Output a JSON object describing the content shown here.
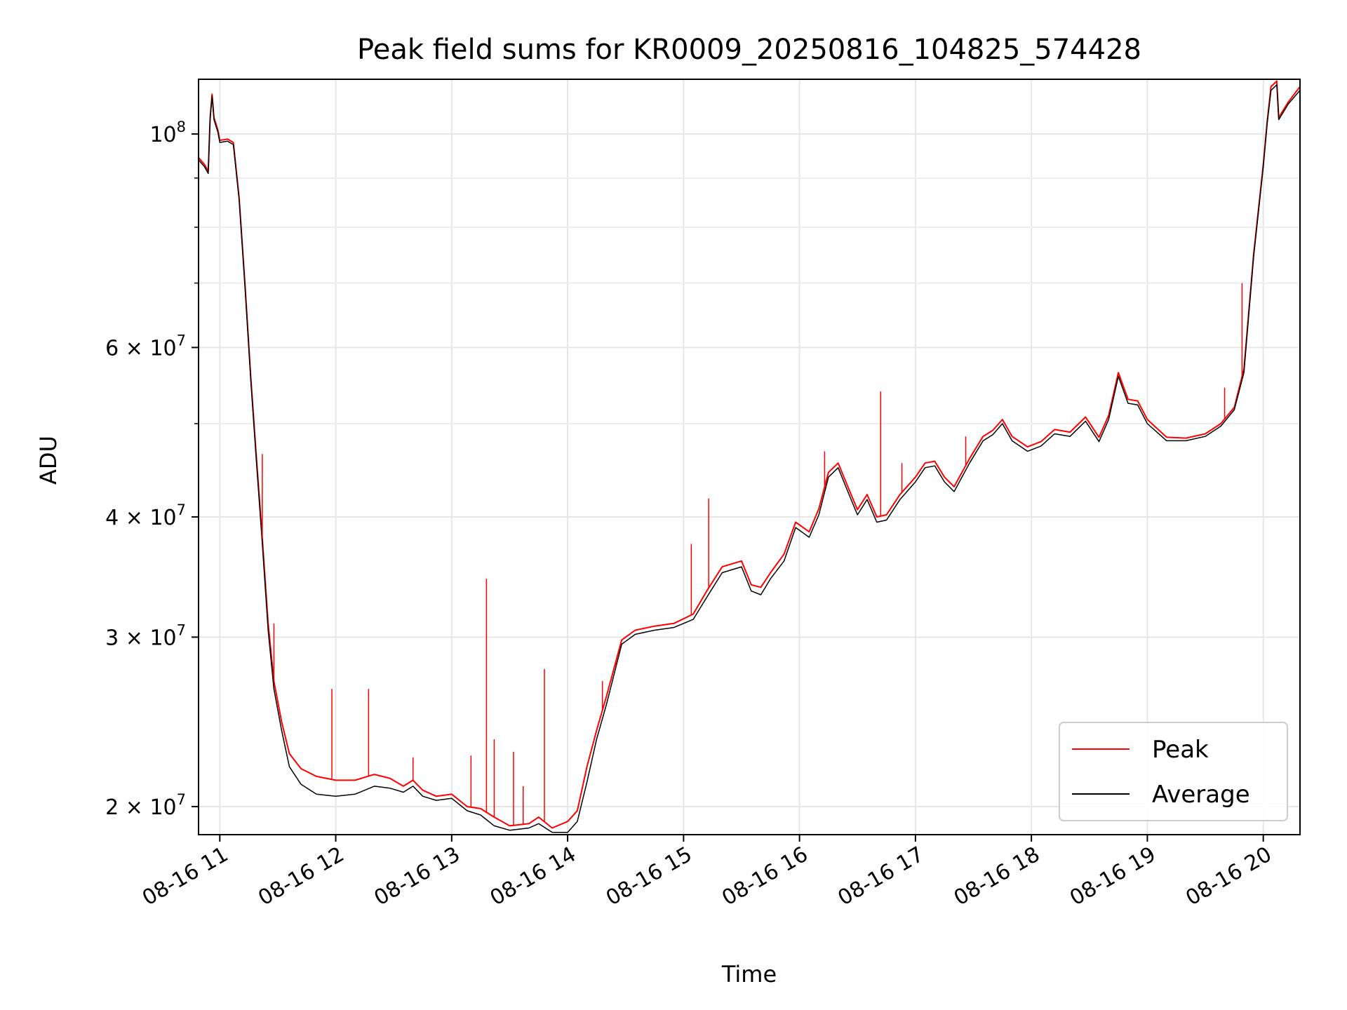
{
  "chart_data": {
    "type": "line",
    "title": "Peak field sums for KR0009_20250816_104825_574428",
    "xlabel": "Time",
    "ylabel": "ADU",
    "xlim": [
      "2025-08-16 10:49",
      "2025-08-16 20:19"
    ],
    "ylim": [
      18700000,
      114000000
    ],
    "yscale": "log",
    "grid": true,
    "legend_position": "bottom-right",
    "x_ticks": [
      {
        "x": "2025-08-16 11:00",
        "label": "08-16 11"
      },
      {
        "x": "2025-08-16 12:00",
        "label": "08-16 12"
      },
      {
        "x": "2025-08-16 13:00",
        "label": "08-16 13"
      },
      {
        "x": "2025-08-16 14:00",
        "label": "08-16 14"
      },
      {
        "x": "2025-08-16 15:00",
        "label": "08-16 15"
      },
      {
        "x": "2025-08-16 16:00",
        "label": "08-16 16"
      },
      {
        "x": "2025-08-16 17:00",
        "label": "08-16 17"
      },
      {
        "x": "2025-08-16 18:00",
        "label": "08-16 18"
      },
      {
        "x": "2025-08-16 19:00",
        "label": "08-16 19"
      },
      {
        "x": "2025-08-16 20:00",
        "label": "08-16 20"
      }
    ],
    "y_ticks": [
      {
        "value": 20000000,
        "mantissa": "2",
        "exponent": "7"
      },
      {
        "value": 30000000,
        "mantissa": "3",
        "exponent": "7"
      },
      {
        "value": 40000000,
        "mantissa": "4",
        "exponent": "7"
      },
      {
        "value": 60000000,
        "mantissa": "6",
        "exponent": "7"
      },
      {
        "value": 100000000,
        "mantissa": "",
        "exponent": "8"
      }
    ],
    "y_minor_ticks": [
      50000000,
      70000000,
      80000000,
      90000000
    ],
    "series": [
      {
        "name": "Peak",
        "color": "#ff0000",
        "points": [
          [
            "2025-08-16 10:49",
            94500000
          ],
          [
            "2025-08-16 10:52",
            93000000
          ],
          [
            "2025-08-16 10:54",
            91500000
          ],
          [
            "2025-08-16 10:55",
            104000000
          ],
          [
            "2025-08-16 10:56",
            110000000
          ],
          [
            "2025-08-16 10:57",
            104000000
          ],
          [
            "2025-08-16 10:59",
            101000000
          ],
          [
            "2025-08-16 11:00",
            98500000
          ],
          [
            "2025-08-16 11:04",
            98800000
          ],
          [
            "2025-08-16 11:07",
            98000000
          ],
          [
            "2025-08-16 11:10",
            86000000
          ],
          [
            "2025-08-16 11:13",
            70000000
          ],
          [
            "2025-08-16 11:16",
            56000000
          ],
          [
            "2025-08-16 11:19",
            46000000
          ],
          [
            "2025-08-16 11:22",
            38000000
          ],
          [
            "2025-08-16 11:25",
            31000000
          ],
          [
            "2025-08-16 11:28",
            27000000
          ],
          [
            "2025-08-16 11:32",
            24500000
          ],
          [
            "2025-08-16 11:36",
            22700000
          ],
          [
            "2025-08-16 11:42",
            21900000
          ],
          [
            "2025-08-16 11:50",
            21500000
          ],
          [
            "2025-08-16 12:00",
            21300000
          ],
          [
            "2025-08-16 12:10",
            21300000
          ],
          [
            "2025-08-16 12:20",
            21600000
          ],
          [
            "2025-08-16 12:28",
            21400000
          ],
          [
            "2025-08-16 12:35",
            21000000
          ],
          [
            "2025-08-16 12:40",
            21300000
          ],
          [
            "2025-08-16 12:45",
            20800000
          ],
          [
            "2025-08-16 12:52",
            20500000
          ],
          [
            "2025-08-16 13:00",
            20600000
          ],
          [
            "2025-08-16 13:08",
            20000000
          ],
          [
            "2025-08-16 13:15",
            19900000
          ],
          [
            "2025-08-16 13:22",
            19500000
          ],
          [
            "2025-08-16 13:30",
            19100000
          ],
          [
            "2025-08-16 13:40",
            19200000
          ],
          [
            "2025-08-16 13:45",
            19500000
          ],
          [
            "2025-08-16 13:52",
            19000000
          ],
          [
            "2025-08-16 14:00",
            19300000
          ],
          [
            "2025-08-16 14:05",
            19800000
          ],
          [
            "2025-08-16 14:10",
            22000000
          ],
          [
            "2025-08-16 14:15",
            24000000
          ],
          [
            "2025-08-16 14:20",
            26000000
          ],
          [
            "2025-08-16 14:28",
            29800000
          ],
          [
            "2025-08-16 14:35",
            30500000
          ],
          [
            "2025-08-16 14:45",
            30800000
          ],
          [
            "2025-08-16 14:55",
            31000000
          ],
          [
            "2025-08-16 15:05",
            31700000
          ],
          [
            "2025-08-16 15:12",
            33500000
          ],
          [
            "2025-08-16 15:20",
            35500000
          ],
          [
            "2025-08-16 15:30",
            36000000
          ],
          [
            "2025-08-16 15:35",
            34000000
          ],
          [
            "2025-08-16 15:40",
            33800000
          ],
          [
            "2025-08-16 15:45",
            35000000
          ],
          [
            "2025-08-16 15:52",
            36600000
          ],
          [
            "2025-08-16 15:58",
            39500000
          ],
          [
            "2025-08-16 16:05",
            38600000
          ],
          [
            "2025-08-16 16:10",
            40800000
          ],
          [
            "2025-08-16 16:15",
            44500000
          ],
          [
            "2025-08-16 16:20",
            45500000
          ],
          [
            "2025-08-16 16:25",
            43000000
          ],
          [
            "2025-08-16 16:30",
            40700000
          ],
          [
            "2025-08-16 16:35",
            42200000
          ],
          [
            "2025-08-16 16:40",
            40000000
          ],
          [
            "2025-08-16 16:45",
            40200000
          ],
          [
            "2025-08-16 16:52",
            42200000
          ],
          [
            "2025-08-16 17:00",
            44000000
          ],
          [
            "2025-08-16 17:05",
            45500000
          ],
          [
            "2025-08-16 17:10",
            45700000
          ],
          [
            "2025-08-16 17:15",
            44000000
          ],
          [
            "2025-08-16 17:20",
            43000000
          ],
          [
            "2025-08-16 17:28",
            46000000
          ],
          [
            "2025-08-16 17:35",
            48500000
          ],
          [
            "2025-08-16 17:40",
            49200000
          ],
          [
            "2025-08-16 17:45",
            50500000
          ],
          [
            "2025-08-16 17:50",
            48500000
          ],
          [
            "2025-08-16 17:58",
            47300000
          ],
          [
            "2025-08-16 18:05",
            47900000
          ],
          [
            "2025-08-16 18:12",
            49300000
          ],
          [
            "2025-08-16 18:20",
            49000000
          ],
          [
            "2025-08-16 18:28",
            50800000
          ],
          [
            "2025-08-16 18:35",
            48400000
          ],
          [
            "2025-08-16 18:40",
            51000000
          ],
          [
            "2025-08-16 18:45",
            56500000
          ],
          [
            "2025-08-16 18:50",
            53000000
          ],
          [
            "2025-08-16 18:55",
            52800000
          ],
          [
            "2025-08-16 19:00",
            50500000
          ],
          [
            "2025-08-16 19:10",
            48400000
          ],
          [
            "2025-08-16 19:20",
            48300000
          ],
          [
            "2025-08-16 19:30",
            48800000
          ],
          [
            "2025-08-16 19:38",
            50000000
          ],
          [
            "2025-08-16 19:45",
            52000000
          ],
          [
            "2025-08-16 19:50",
            57000000
          ],
          [
            "2025-08-16 19:55",
            75000000
          ],
          [
            "2025-08-16 20:00",
            93000000
          ],
          [
            "2025-08-16 20:02",
            103000000
          ],
          [
            "2025-08-16 20:04",
            112000000
          ],
          [
            "2025-08-16 20:07",
            113500000
          ],
          [
            "2025-08-16 20:08",
            104000000
          ],
          [
            "2025-08-16 20:13",
            108000000
          ],
          [
            "2025-08-16 20:19",
            112000000
          ]
        ]
      },
      {
        "name": "Average",
        "color": "#000000",
        "points": [
          [
            "2025-08-16 10:49",
            94000000
          ],
          [
            "2025-08-16 10:52",
            92500000
          ],
          [
            "2025-08-16 10:54",
            91000000
          ],
          [
            "2025-08-16 10:55",
            103500000
          ],
          [
            "2025-08-16 10:56",
            109500000
          ],
          [
            "2025-08-16 10:57",
            103500000
          ],
          [
            "2025-08-16 10:59",
            100500000
          ],
          [
            "2025-08-16 11:00",
            98000000
          ],
          [
            "2025-08-16 11:04",
            98300000
          ],
          [
            "2025-08-16 11:07",
            97500000
          ],
          [
            "2025-08-16 11:10",
            85500000
          ],
          [
            "2025-08-16 11:13",
            69500000
          ],
          [
            "2025-08-16 11:16",
            55500000
          ],
          [
            "2025-08-16 11:19",
            45500000
          ],
          [
            "2025-08-16 11:22",
            37500000
          ],
          [
            "2025-08-16 11:25",
            30500000
          ],
          [
            "2025-08-16 11:28",
            26500000
          ],
          [
            "2025-08-16 11:32",
            24000000
          ],
          [
            "2025-08-16 11:36",
            22000000
          ],
          [
            "2025-08-16 11:42",
            21100000
          ],
          [
            "2025-08-16 11:50",
            20600000
          ],
          [
            "2025-08-16 12:00",
            20500000
          ],
          [
            "2025-08-16 12:10",
            20600000
          ],
          [
            "2025-08-16 12:20",
            21000000
          ],
          [
            "2025-08-16 12:28",
            20900000
          ],
          [
            "2025-08-16 12:35",
            20700000
          ],
          [
            "2025-08-16 12:40",
            21000000
          ],
          [
            "2025-08-16 12:45",
            20500000
          ],
          [
            "2025-08-16 12:52",
            20300000
          ],
          [
            "2025-08-16 13:00",
            20400000
          ],
          [
            "2025-08-16 13:08",
            19800000
          ],
          [
            "2025-08-16 13:15",
            19600000
          ],
          [
            "2025-08-16 13:22",
            19100000
          ],
          [
            "2025-08-16 13:30",
            18900000
          ],
          [
            "2025-08-16 13:40",
            19000000
          ],
          [
            "2025-08-16 13:45",
            19200000
          ],
          [
            "2025-08-16 13:52",
            18800000
          ],
          [
            "2025-08-16 14:00",
            18800000
          ],
          [
            "2025-08-16 14:05",
            19300000
          ],
          [
            "2025-08-16 14:10",
            21200000
          ],
          [
            "2025-08-16 14:15",
            23500000
          ],
          [
            "2025-08-16 14:20",
            25500000
          ],
          [
            "2025-08-16 14:28",
            29500000
          ],
          [
            "2025-08-16 14:35",
            30200000
          ],
          [
            "2025-08-16 14:45",
            30500000
          ],
          [
            "2025-08-16 14:55",
            30700000
          ],
          [
            "2025-08-16 15:05",
            31300000
          ],
          [
            "2025-08-16 15:12",
            33000000
          ],
          [
            "2025-08-16 15:20",
            35000000
          ],
          [
            "2025-08-16 15:30",
            35500000
          ],
          [
            "2025-08-16 15:35",
            33500000
          ],
          [
            "2025-08-16 15:40",
            33200000
          ],
          [
            "2025-08-16 15:45",
            34500000
          ],
          [
            "2025-08-16 15:52",
            36000000
          ],
          [
            "2025-08-16 15:58",
            39000000
          ],
          [
            "2025-08-16 16:05",
            38100000
          ],
          [
            "2025-08-16 16:10",
            40200000
          ],
          [
            "2025-08-16 16:15",
            44000000
          ],
          [
            "2025-08-16 16:20",
            45000000
          ],
          [
            "2025-08-16 16:25",
            42500000
          ],
          [
            "2025-08-16 16:30",
            40200000
          ],
          [
            "2025-08-16 16:35",
            41700000
          ],
          [
            "2025-08-16 16:40",
            39500000
          ],
          [
            "2025-08-16 16:45",
            39700000
          ],
          [
            "2025-08-16 16:52",
            41700000
          ],
          [
            "2025-08-16 17:00",
            43500000
          ],
          [
            "2025-08-16 17:05",
            45000000
          ],
          [
            "2025-08-16 17:10",
            45200000
          ],
          [
            "2025-08-16 17:15",
            43500000
          ],
          [
            "2025-08-16 17:20",
            42500000
          ],
          [
            "2025-08-16 17:28",
            45500000
          ],
          [
            "2025-08-16 17:35",
            48000000
          ],
          [
            "2025-08-16 17:40",
            48700000
          ],
          [
            "2025-08-16 17:45",
            50000000
          ],
          [
            "2025-08-16 17:50",
            48000000
          ],
          [
            "2025-08-16 17:58",
            46800000
          ],
          [
            "2025-08-16 18:05",
            47400000
          ],
          [
            "2025-08-16 18:12",
            48800000
          ],
          [
            "2025-08-16 18:20",
            48500000
          ],
          [
            "2025-08-16 18:28",
            50300000
          ],
          [
            "2025-08-16 18:35",
            47900000
          ],
          [
            "2025-08-16 18:40",
            50500000
          ],
          [
            "2025-08-16 18:45",
            56000000
          ],
          [
            "2025-08-16 18:50",
            52500000
          ],
          [
            "2025-08-16 18:55",
            52300000
          ],
          [
            "2025-08-16 19:00",
            50000000
          ],
          [
            "2025-08-16 19:10",
            48000000
          ],
          [
            "2025-08-16 19:20",
            48000000
          ],
          [
            "2025-08-16 19:30",
            48500000
          ],
          [
            "2025-08-16 19:38",
            49700000
          ],
          [
            "2025-08-16 19:45",
            51700000
          ],
          [
            "2025-08-16 19:50",
            56500000
          ],
          [
            "2025-08-16 19:55",
            74500000
          ],
          [
            "2025-08-16 20:00",
            92500000
          ],
          [
            "2025-08-16 20:02",
            102500000
          ],
          [
            "2025-08-16 20:04",
            111000000
          ],
          [
            "2025-08-16 20:07",
            112500000
          ],
          [
            "2025-08-16 20:08",
            103500000
          ],
          [
            "2025-08-16 20:13",
            107500000
          ],
          [
            "2025-08-16 20:19",
            111000000
          ]
        ]
      }
    ],
    "peak_spikes": [
      [
        "2025-08-16 11:22",
        46500000
      ],
      [
        "2025-08-16 11:28",
        31000000
      ],
      [
        "2025-08-16 11:58",
        26500000
      ],
      [
        "2025-08-16 12:17",
        26500000
      ],
      [
        "2025-08-16 12:40",
        22500000
      ],
      [
        "2025-08-16 13:10",
        22600000
      ],
      [
        "2025-08-16 13:18",
        34500000
      ],
      [
        "2025-08-16 13:22",
        23500000
      ],
      [
        "2025-08-16 13:32",
        22800000
      ],
      [
        "2025-08-16 13:37",
        21000000
      ],
      [
        "2025-08-16 13:48",
        27800000
      ],
      [
        "2025-08-16 14:18",
        27000000
      ],
      [
        "2025-08-16 14:25",
        28000000
      ],
      [
        "2025-08-16 15:04",
        37500000
      ],
      [
        "2025-08-16 15:13",
        41800000
      ],
      [
        "2025-08-16 16:13",
        46800000
      ],
      [
        "2025-08-16 16:42",
        54000000
      ],
      [
        "2025-08-16 16:53",
        45500000
      ],
      [
        "2025-08-16 17:26",
        48500000
      ],
      [
        "2025-08-16 19:40",
        54500000
      ],
      [
        "2025-08-16 19:49",
        70000000
      ]
    ]
  }
}
